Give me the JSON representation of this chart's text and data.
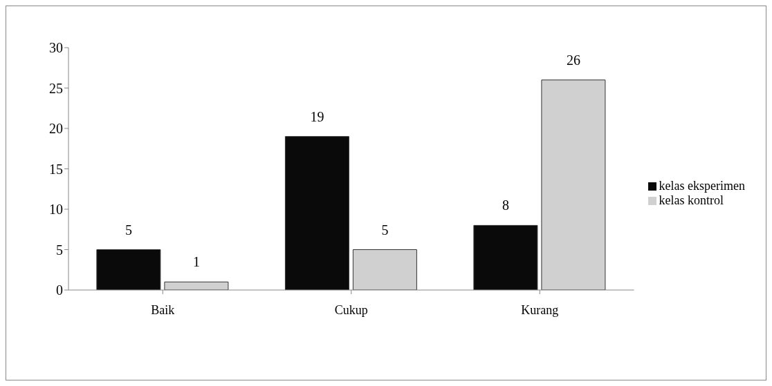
{
  "chart_data": {
    "type": "bar",
    "categories": [
      "Baik",
      "Cukup",
      "Kurang"
    ],
    "series": [
      {
        "name": "kelas eksperimen",
        "color": "#0a0a0a",
        "values": [
          5,
          19,
          8
        ]
      },
      {
        "name": "kelas kontrol",
        "color": "#d0d0d0",
        "values": [
          1,
          5,
          26
        ]
      }
    ],
    "ylim": [
      0,
      30
    ],
    "yticks": [
      0,
      5,
      10,
      15,
      20,
      25,
      30
    ],
    "data_labels": true,
    "legend": "right",
    "grid": false
  }
}
